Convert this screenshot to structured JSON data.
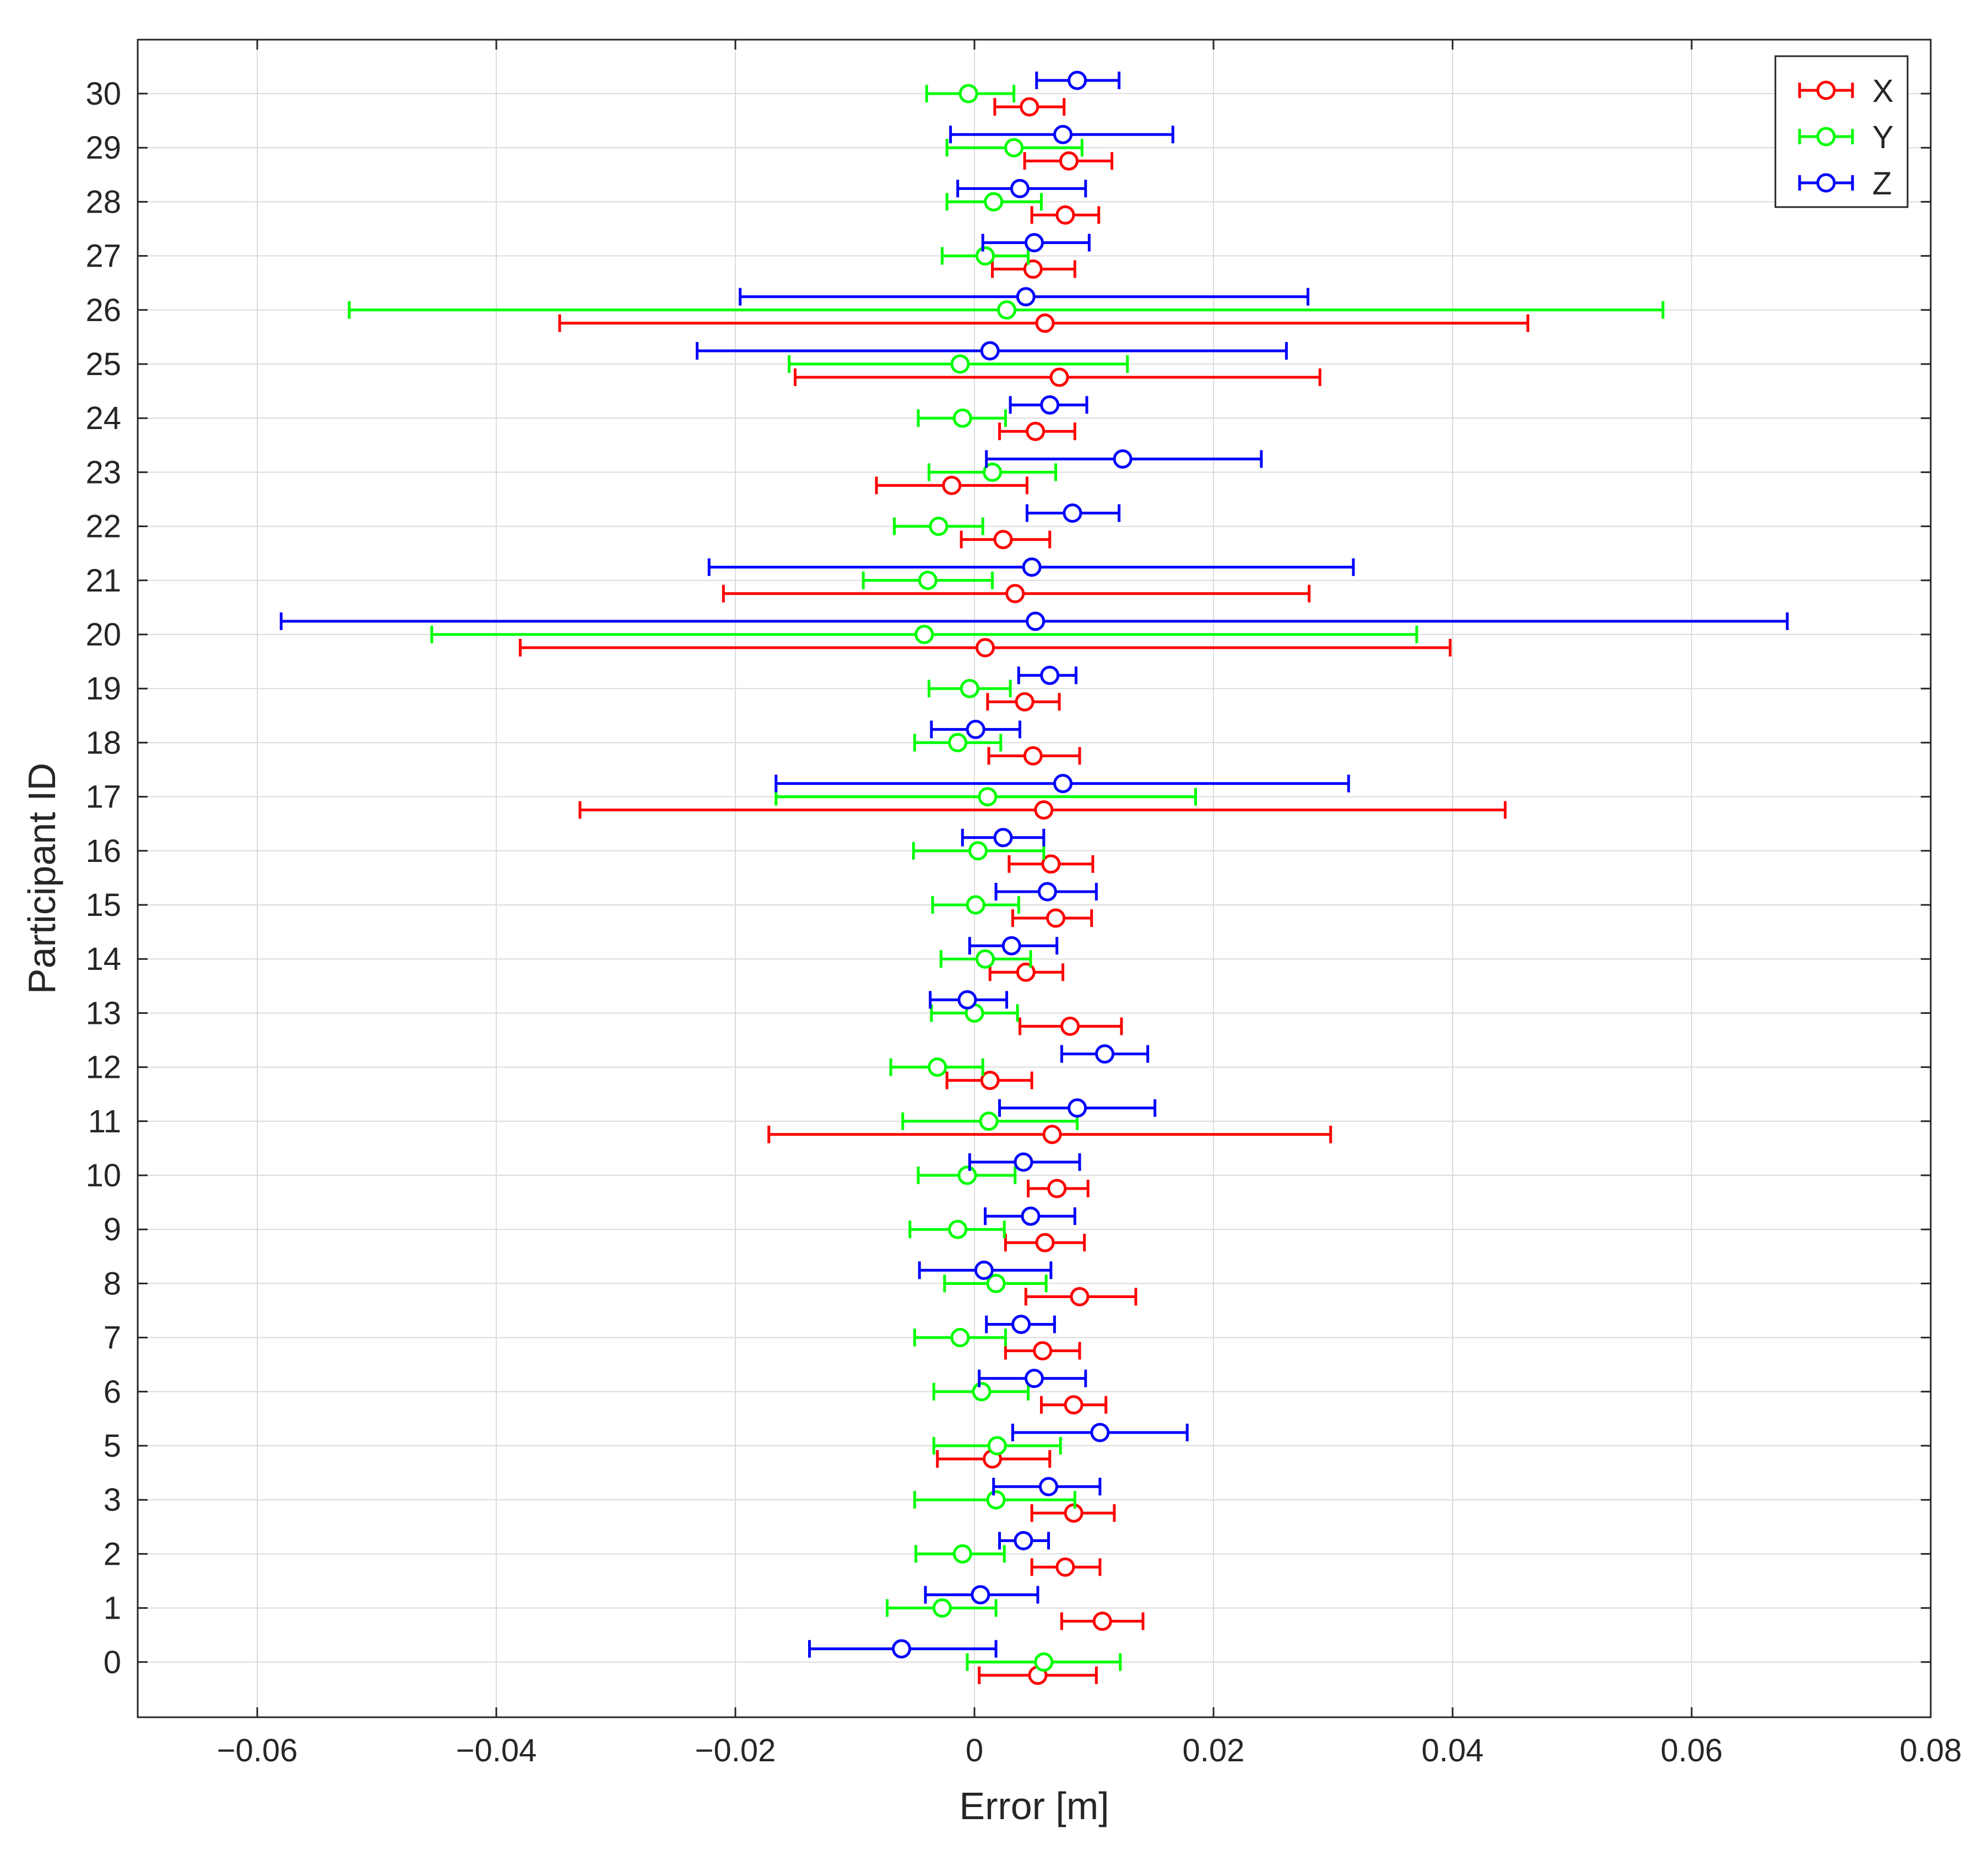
{
  "chart_data": {
    "type": "errorbar-horizontal",
    "xlabel": "Error [m]",
    "ylabel": "Participant ID",
    "xlim": [
      -0.07,
      0.08
    ],
    "xticks": [
      -0.06,
      -0.04,
      -0.02,
      0,
      0.02,
      0.04,
      0.06,
      0.08
    ],
    "xtick_labels": [
      "−0.06",
      "−0.04",
      "−0.02",
      "0",
      "0.02",
      "0.04",
      "0.06",
      "0.08"
    ],
    "grid": true,
    "legend_position": "top-right",
    "categories": [
      "0",
      "1",
      "2",
      "3",
      "5",
      "6",
      "7",
      "8",
      "9",
      "10",
      "11",
      "12",
      "13",
      "14",
      "15",
      "16",
      "17",
      "18",
      "19",
      "20",
      "21",
      "22",
      "23",
      "24",
      "25",
      "26",
      "27",
      "28",
      "29",
      "30"
    ],
    "series": [
      {
        "name": "X",
        "color": "#ff0000",
        "marker": "circle",
        "mean": [
          0.0053,
          0.0107,
          0.0076,
          0.0083,
          0.0015,
          0.0083,
          0.0057,
          0.0088,
          0.0059,
          0.0069,
          0.0065,
          0.0013,
          0.008,
          0.0043,
          0.0068,
          0.0064,
          0.0058,
          0.0049,
          0.0042,
          0.0009,
          0.0034,
          0.0024,
          -0.0019,
          0.0051,
          0.0071,
          0.0059,
          0.0049,
          0.0076,
          0.0079,
          0.0046
        ],
        "lower": [
          0.0004,
          0.0073,
          0.0048,
          0.0048,
          -0.0031,
          0.0056,
          0.0026,
          0.0043,
          0.0026,
          0.0045,
          -0.0172,
          -0.0023,
          0.0038,
          0.0013,
          0.0032,
          0.0029,
          -0.033,
          0.0012,
          0.0011,
          -0.038,
          -0.021,
          -0.0011,
          -0.0082,
          0.0021,
          -0.015,
          -0.0347,
          0.0015,
          0.0048,
          0.0042,
          0.0017
        ],
        "upper": [
          0.0102,
          0.0141,
          0.0105,
          0.0117,
          0.0063,
          0.011,
          0.0088,
          0.0135,
          0.0092,
          0.0095,
          0.0298,
          0.0048,
          0.0123,
          0.0074,
          0.0098,
          0.0099,
          0.0444,
          0.0088,
          0.0071,
          0.0398,
          0.028,
          0.0063,
          0.0044,
          0.0084,
          0.0289,
          0.0463,
          0.0084,
          0.0104,
          0.0115,
          0.0075
        ]
      },
      {
        "name": "Y",
        "color": "#00ff00",
        "marker": "circle",
        "mean": [
          0.0058,
          -0.0027,
          -0.001,
          0.0018,
          0.0019,
          0.0006,
          -0.0012,
          0.0018,
          -0.0014,
          -0.0006,
          0.0012,
          -0.0031,
          0.0,
          0.0009,
          0.0001,
          0.0003,
          0.0011,
          -0.0014,
          -0.0004,
          -0.0042,
          -0.0039,
          -0.003,
          0.0015,
          -0.001,
          -0.0012,
          0.0027,
          0.0009,
          0.0016,
          0.0033,
          -0.0005
        ],
        "lower": [
          -0.0006,
          -0.0073,
          -0.0049,
          -0.005,
          -0.0034,
          -0.0034,
          -0.005,
          -0.0025,
          -0.0054,
          -0.0047,
          -0.006,
          -0.007,
          -0.0036,
          -0.0028,
          -0.0035,
          -0.0051,
          -0.0166,
          -0.005,
          -0.0038,
          -0.0454,
          -0.0093,
          -0.0067,
          -0.0038,
          -0.0047,
          -0.0155,
          -0.0523,
          -0.0027,
          -0.0023,
          -0.0023,
          -0.004
        ],
        "upper": [
          0.0122,
          0.0018,
          0.0025,
          0.0084,
          0.0072,
          0.0045,
          0.0026,
          0.006,
          0.0025,
          0.0034,
          0.0086,
          0.0007,
          0.0036,
          0.0047,
          0.0037,
          0.0058,
          0.0185,
          0.0022,
          0.003,
          0.037,
          0.0015,
          0.0007,
          0.0068,
          0.0026,
          0.0128,
          0.0576,
          0.0045,
          0.0056,
          0.009,
          0.0033
        ]
      },
      {
        "name": "Z",
        "color": "#0000ff",
        "marker": "circle",
        "mean": [
          -0.0061,
          0.0005,
          0.0041,
          0.0062,
          0.0105,
          0.005,
          0.0039,
          0.0008,
          0.0047,
          0.0041,
          0.0086,
          0.0109,
          -0.0006,
          0.0031,
          0.0061,
          0.0024,
          0.0074,
          0.0001,
          0.0063,
          0.0051,
          0.0048,
          0.0082,
          0.0124,
          0.0063,
          0.0013,
          0.0043,
          0.005,
          0.0038,
          0.0074,
          0.0086
        ],
        "lower": [
          -0.0138,
          -0.0041,
          0.0021,
          0.0016,
          0.0032,
          0.0004,
          0.001,
          -0.0046,
          0.0009,
          -0.0004,
          0.0021,
          0.0073,
          -0.0037,
          -0.0004,
          0.0018,
          -0.001,
          -0.0166,
          -0.0036,
          0.0037,
          -0.058,
          -0.0222,
          0.0044,
          0.001,
          0.003,
          -0.0232,
          -0.0196,
          0.0007,
          -0.0014,
          -0.002,
          0.0052
        ],
        "upper": [
          0.0018,
          0.0053,
          0.0062,
          0.0105,
          0.0178,
          0.0093,
          0.0067,
          0.0064,
          0.0084,
          0.0088,
          0.0151,
          0.0145,
          0.0027,
          0.0069,
          0.0102,
          0.0058,
          0.0313,
          0.0038,
          0.0085,
          0.068,
          0.0317,
          0.0121,
          0.024,
          0.0094,
          0.0261,
          0.0279,
          0.0096,
          0.0093,
          0.0166,
          0.0121
        ]
      }
    ]
  }
}
